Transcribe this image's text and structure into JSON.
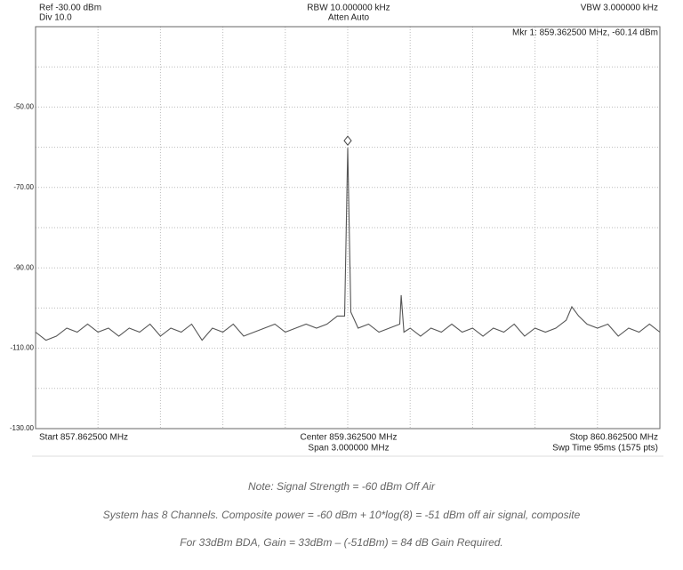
{
  "chart_data": {
    "type": "line",
    "header": {
      "ref": "Ref -30.00 dBm",
      "div": "Div 10.0",
      "rbw": "RBW 10.000000 kHz",
      "atten": "Atten Auto",
      "vbw": "VBW 3.000000 kHz"
    },
    "footer": {
      "start": "Start 857.862500 MHz",
      "center": "Center 859.362500 MHz",
      "span": "Span 3.000000 MHz",
      "stop": "Stop 860.862500 MHz",
      "swp": "Swp Time 95ms (1575 pts)"
    },
    "marker": {
      "label": "Mkr 1: 859.362500 MHz, -60.14 dBm",
      "x": 859.3625,
      "y": -60.14
    },
    "xlim": [
      857.8625,
      860.8625
    ],
    "xgrid": [
      858.1625,
      858.4625,
      858.7625,
      859.0625,
      859.3625,
      859.6625,
      859.9625,
      860.2625,
      860.5625
    ],
    "ylim": [
      -130,
      -30
    ],
    "yticks": [
      {
        "value": -50,
        "label": "-50.00"
      },
      {
        "value": -70,
        "label": "-70.00"
      },
      {
        "value": -90,
        "label": "-90.00"
      },
      {
        "value": -110,
        "label": "-110.00"
      },
      {
        "value": -130,
        "label": "-130.00"
      }
    ],
    "y_minor_grid": [
      -40,
      -60,
      -80,
      -100,
      -120
    ],
    "grid": true,
    "color": "#555555",
    "x": [
      857.8625,
      857.9125,
      857.9625,
      858.0125,
      858.0625,
      858.1125,
      858.1625,
      858.2125,
      858.2625,
      858.3125,
      858.3625,
      858.4125,
      858.4625,
      858.5125,
      858.5625,
      858.6125,
      858.6625,
      858.7125,
      858.7625,
      858.8125,
      858.8625,
      858.9125,
      858.9625,
      859.0125,
      859.0625,
      859.1125,
      859.1625,
      859.2125,
      859.2625,
      859.3125,
      859.3475,
      859.3625,
      859.3775,
      859.4125,
      859.4625,
      859.5125,
      859.5625,
      859.6125,
      859.6195,
      859.6325,
      859.6625,
      859.7125,
      859.7625,
      859.8125,
      859.8625,
      859.9125,
      859.9625,
      860.0125,
      860.0625,
      860.1125,
      860.1625,
      860.2125,
      860.2625,
      860.3125,
      860.3625,
      860.4125,
      860.4395,
      860.4725,
      860.5125,
      860.5625,
      860.6125,
      860.6625,
      860.7125,
      860.7625,
      860.8125,
      860.8625
    ],
    "values": [
      -106,
      -108,
      -107,
      -105,
      -106,
      -104,
      -106,
      -105,
      -107,
      -105,
      -106,
      -104,
      -107,
      -105,
      -106,
      -104,
      -108,
      -105,
      -106,
      -104,
      -107,
      -106,
      -105,
      -104,
      -106,
      -105,
      -104,
      -105,
      -104,
      -102,
      -102,
      -60.14,
      -101,
      -105,
      -104,
      -106,
      -105,
      -104,
      -96.8,
      -106,
      -105,
      -107,
      -105,
      -106,
      -104,
      -106,
      -105,
      -107,
      -105,
      -106,
      -104,
      -107,
      -105,
      -106,
      -105,
      -103,
      -99.7,
      -102,
      -104,
      -105,
      -104,
      -107,
      -105,
      -106,
      -104,
      -106
    ]
  },
  "notes": [
    "Note: Signal Strength = -60 dBm Off Air",
    "System has 8 Channels. Composite power = -60 dBm + 10*log(8) = -51 dBm off air signal, composite",
    "For 33dBm BDA, Gain = 33dBm  – (-51dBm) = 84 dB Gain Required."
  ]
}
